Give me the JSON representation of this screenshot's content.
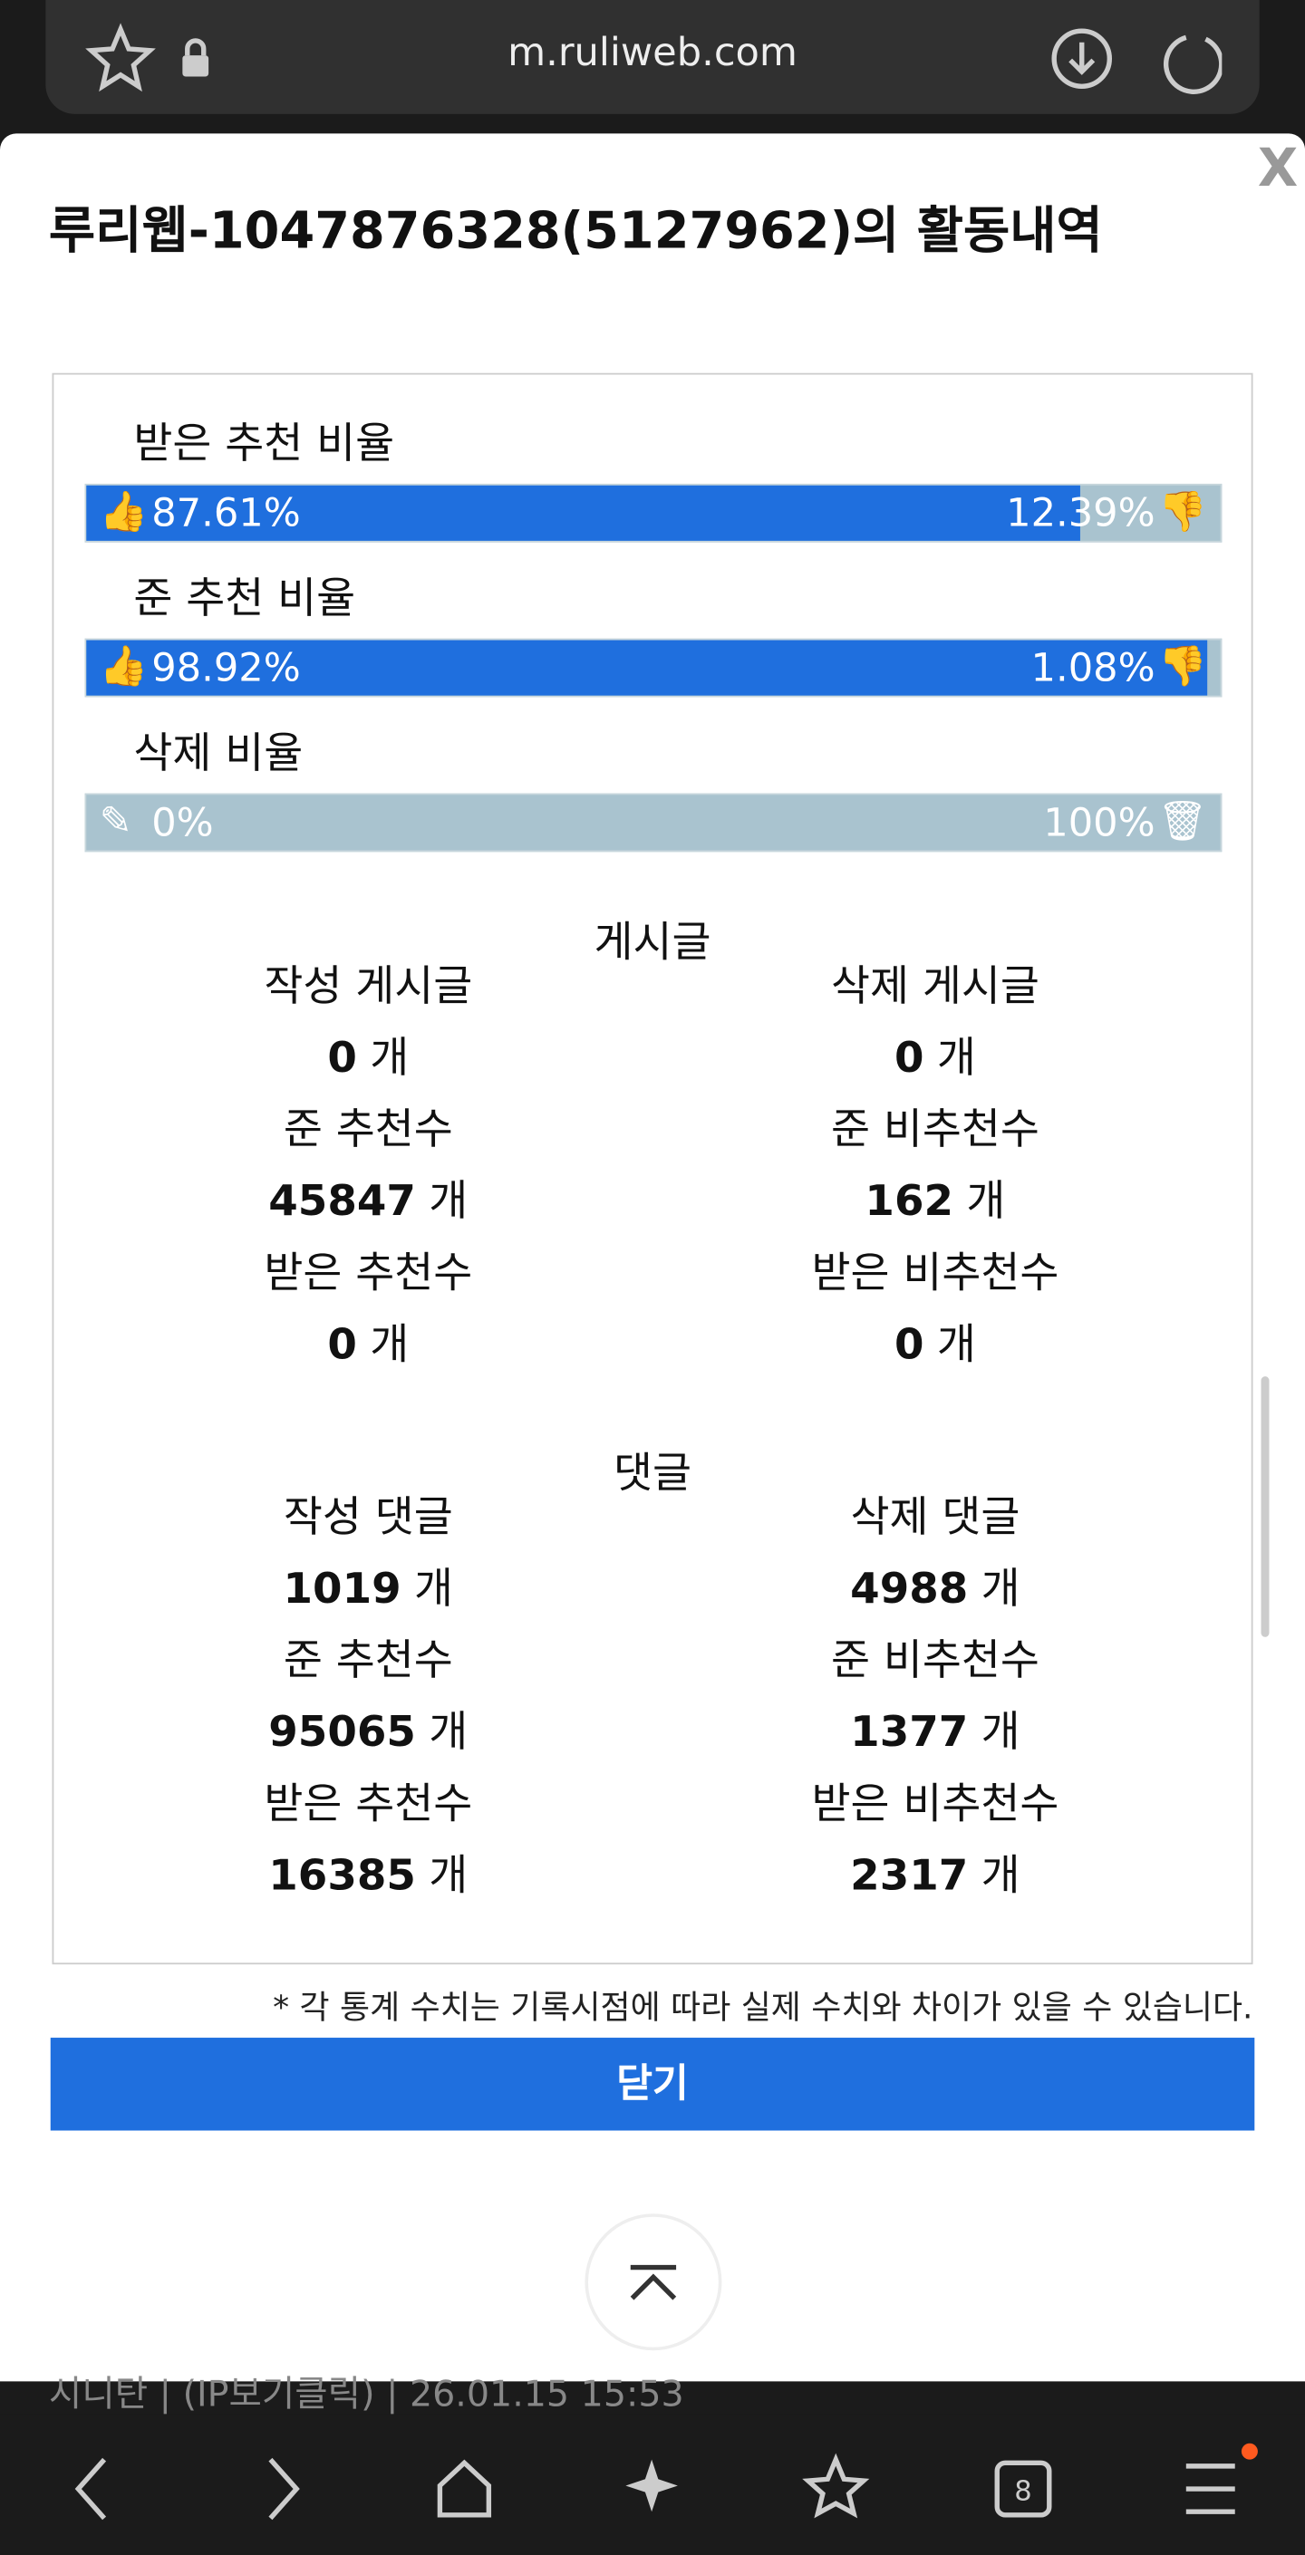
{
  "browser": {
    "url": "m.ruliweb.com",
    "tab_count": "8"
  },
  "modal": {
    "close_x": "X",
    "title": "루리웹-1047876328(5127962)의 활동내역",
    "ratios": [
      {
        "label": "받은 추천 비율",
        "up": {
          "value": 87.61,
          "label": "87.61%"
        },
        "down": {
          "value": 12.39,
          "label": "12.39%"
        },
        "icon": "thumb"
      },
      {
        "label": "준 추천 비율",
        "up": {
          "value": 98.92,
          "label": "98.92%"
        },
        "down": {
          "value": 1.08,
          "label": "1.08%"
        },
        "icon": "thumb"
      },
      {
        "label": "삭제 비율",
        "up": {
          "value": 0,
          "label": "0%"
        },
        "down": {
          "value": 100,
          "label": "100%"
        },
        "icon": "edit"
      }
    ],
    "sections": [
      {
        "title": "게시글",
        "stats": [
          {
            "label": "작성 게시글",
            "value": 0,
            "unit": "개"
          },
          {
            "label": "삭제 게시글",
            "value": 0,
            "unit": "개"
          },
          {
            "label": "준 추천수",
            "value": 45847,
            "unit": "개"
          },
          {
            "label": "준 비추천수",
            "value": 162,
            "unit": "개"
          },
          {
            "label": "받은 추천수",
            "value": 0,
            "unit": "개"
          },
          {
            "label": "받은 비추천수",
            "value": 0,
            "unit": "개"
          }
        ]
      },
      {
        "title": "댓글",
        "stats": [
          {
            "label": "작성 댓글",
            "value": 1019,
            "unit": "개"
          },
          {
            "label": "삭제 댓글",
            "value": 4988,
            "unit": "개"
          },
          {
            "label": "준 추천수",
            "value": 95065,
            "unit": "개"
          },
          {
            "label": "준 비추천수",
            "value": 1377,
            "unit": "개"
          },
          {
            "label": "받은 추천수",
            "value": 16385,
            "unit": "개"
          },
          {
            "label": "받은 비추천수",
            "value": 2317,
            "unit": "개"
          }
        ]
      }
    ],
    "note": "* 각 통계 수치는 기록시점에 따라 실제 수치와 차이가 있을 수 있습니다.",
    "close_button": "닫기"
  },
  "footer_peek": "시니탄 | (IP보기클릭) | 26.01.15 15:53"
}
